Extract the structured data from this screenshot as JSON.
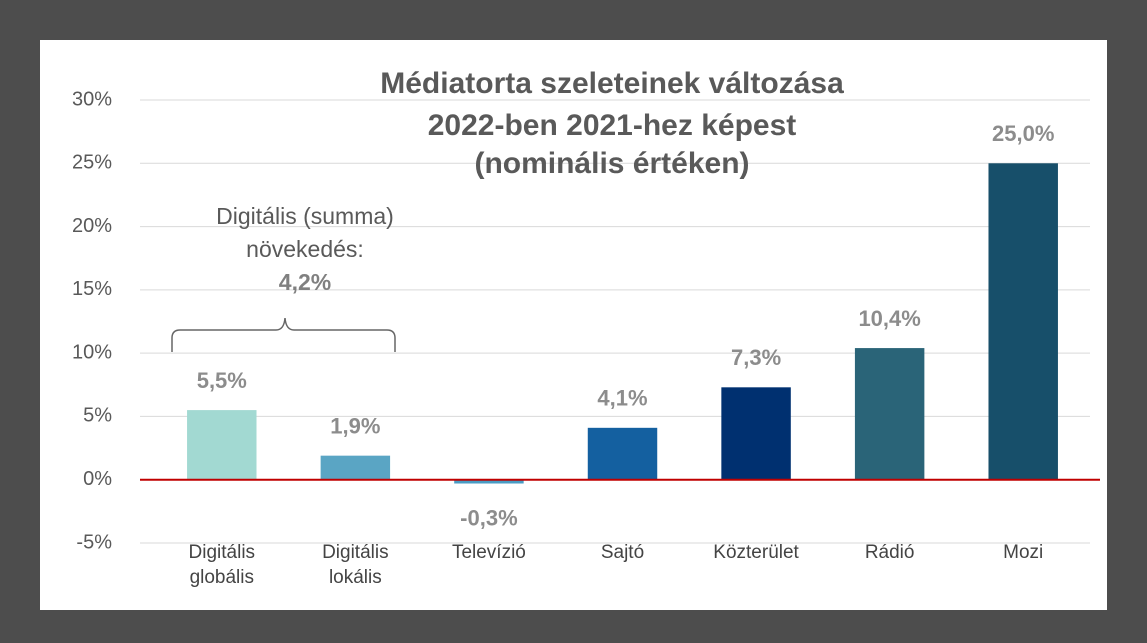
{
  "chart_data": {
    "type": "bar",
    "title": [
      "Médiatorta szeleteinek változása",
      "2022-ben 2021-hez képest",
      "(nominális értéken)"
    ],
    "categories": [
      "Digitális globális",
      "Digitális lokális",
      "Televízió",
      "Sajtó",
      "Közterület",
      "Rádió",
      "Mozi"
    ],
    "values": [
      5.5,
      1.9,
      -0.3,
      4.1,
      7.3,
      10.4,
      25.0
    ],
    "value_labels": [
      "5,5%",
      "1,9%",
      "-0,3%",
      "4,1%",
      "7,3%",
      "10,4%",
      "25,0%"
    ],
    "colors": [
      "#a2d9d2",
      "#5aa5c4",
      "#4a9cc4",
      "#1460a0",
      "#003070",
      "#2a6478",
      "#174f6a"
    ],
    "ylim": [
      -5,
      30
    ],
    "yticks": [
      {
        "value": -5,
        "label": "-5%"
      },
      {
        "value": 0,
        "label": "0%"
      },
      {
        "value": 5,
        "label": "5%"
      },
      {
        "value": 10,
        "label": "10%"
      },
      {
        "value": 15,
        "label": "15%"
      },
      {
        "value": 20,
        "label": "20%"
      },
      {
        "value": 25,
        "label": "25%"
      },
      {
        "value": 30,
        "label": "30%"
      }
    ],
    "grid": true,
    "annotation": [
      "Digitális (summa)",
      "növekedés:",
      "4,2%"
    ]
  }
}
